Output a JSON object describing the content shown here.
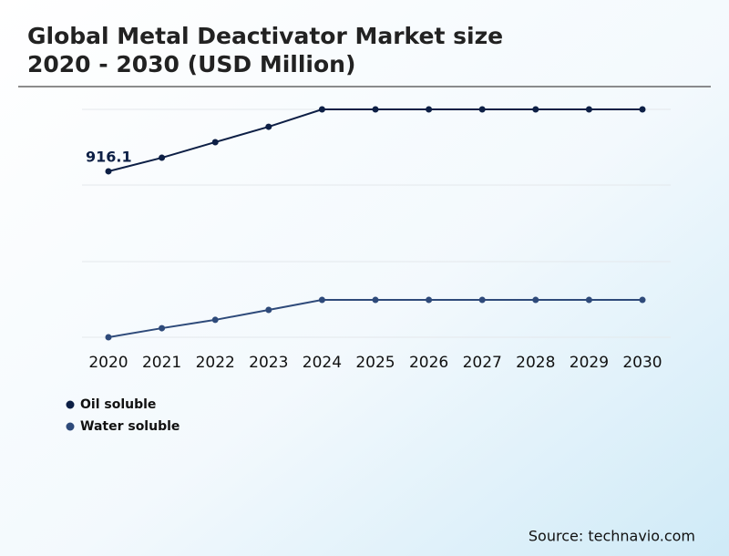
{
  "chart_data": {
    "type": "line",
    "title": "Global Metal Deactivator Market size",
    "subtitle": "2020 - 2030 (USD Million)",
    "categories": [
      "2020",
      "2021",
      "2022",
      "2023",
      "2024",
      "2025",
      "2026",
      "2027",
      "2028",
      "2029",
      "2030"
    ],
    "series": [
      {
        "name": "Oil soluble",
        "color": "#0d1f45",
        "values": [
          916.1,
          991,
          1077,
          1162,
          1258,
          1258,
          1258,
          1258,
          1258,
          1258,
          1258
        ]
      },
      {
        "name": "Water soluble",
        "color": "#2e4a7a",
        "values": [
          0,
          50,
          96,
          151,
          206,
          206,
          206,
          206,
          206,
          206,
          206
        ]
      }
    ],
    "labeled_point": "chart_data.series.0.values.0",
    "ylim": [
      0,
      1258
    ],
    "source": "Source: technavio.com"
  }
}
